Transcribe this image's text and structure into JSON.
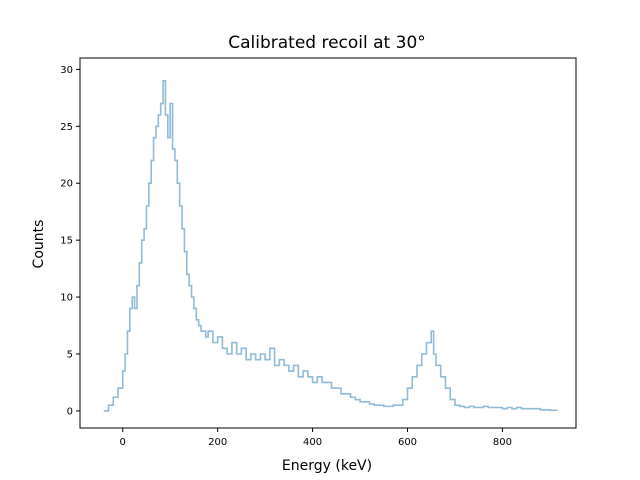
{
  "chart_data": {
    "type": "line",
    "title": "Calibrated recoil at 30°",
    "xlabel": "Energy (keV)",
    "ylabel": "Counts",
    "xlim": [
      -90,
      955
    ],
    "ylim": [
      -1.5,
      31
    ],
    "x_ticks": [
      0,
      200,
      400,
      600,
      800
    ],
    "y_ticks": [
      0,
      5,
      10,
      15,
      20,
      25,
      30
    ],
    "x_tick_labels": [
      "0",
      "200",
      "400",
      "600",
      "800"
    ],
    "y_tick_labels": [
      "0",
      "5",
      "10",
      "15",
      "20",
      "25",
      "30"
    ],
    "grid": false,
    "series": [
      {
        "color": "#8fbbd9",
        "x": [
          -40,
          -30,
          -20,
          -10,
          0,
          5,
          10,
          15,
          20,
          25,
          30,
          35,
          40,
          45,
          50,
          55,
          60,
          65,
          70,
          75,
          80,
          85,
          90,
          95,
          100,
          105,
          110,
          115,
          120,
          125,
          130,
          135,
          140,
          145,
          150,
          155,
          160,
          165,
          170,
          175,
          180,
          190,
          200,
          210,
          220,
          230,
          240,
          250,
          260,
          270,
          280,
          290,
          300,
          310,
          320,
          330,
          340,
          350,
          360,
          370,
          380,
          390,
          400,
          410,
          420,
          430,
          440,
          450,
          460,
          470,
          480,
          490,
          500,
          510,
          520,
          530,
          540,
          550,
          560,
          570,
          580,
          590,
          600,
          610,
          620,
          630,
          640,
          650,
          655,
          660,
          670,
          680,
          690,
          700,
          710,
          720,
          730,
          740,
          750,
          760,
          770,
          780,
          790,
          800,
          810,
          820,
          830,
          840,
          850,
          860,
          870,
          880,
          890,
          900,
          915
        ],
        "y": [
          0,
          0.5,
          1.2,
          2,
          3.5,
          5,
          7,
          9,
          10,
          9,
          11,
          13,
          15,
          16,
          18,
          20,
          22,
          24,
          25,
          26,
          27,
          29,
          26,
          24,
          27,
          23,
          22,
          20,
          18,
          16,
          14,
          12,
          11,
          10,
          9,
          8,
          7.5,
          7,
          7,
          6.5,
          7,
          6,
          6.5,
          5.5,
          5,
          6,
          5,
          5.5,
          4.5,
          5,
          4.5,
          5,
          4.5,
          5.5,
          4,
          4.5,
          4,
          3.5,
          4,
          3,
          3.5,
          3,
          2.5,
          3,
          2.5,
          2.5,
          2,
          2,
          1.5,
          1.5,
          1.2,
          1,
          0.8,
          0.8,
          0.6,
          0.5,
          0.5,
          0.4,
          0.4,
          0.5,
          0.5,
          1,
          2,
          3,
          4,
          5,
          6,
          7,
          5,
          4,
          3,
          2,
          1,
          0.5,
          0.4,
          0.3,
          0.4,
          0.3,
          0.3,
          0.4,
          0.3,
          0.3,
          0.3,
          0.2,
          0.3,
          0.2,
          0.3,
          0.2,
          0.2,
          0.2,
          0.2,
          0.1,
          0.1,
          0.05,
          0
        ]
      }
    ]
  }
}
